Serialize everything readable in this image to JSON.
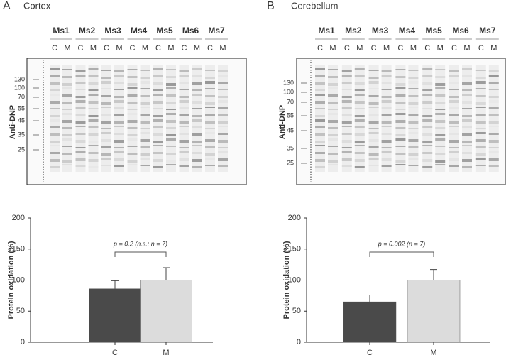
{
  "panels": [
    {
      "letter": "A",
      "label": "Cortex"
    },
    {
      "letter": "B",
      "label": "Cerebellum"
    }
  ],
  "blots": [
    {
      "mice": [
        "Ms1",
        "Ms2",
        "Ms3",
        "Ms4",
        "Ms5",
        "Ms6",
        "Ms7"
      ],
      "lanes": [
        "C",
        "M"
      ],
      "ylabel": "Anti-DNP",
      "markers": [
        130,
        100,
        70,
        55,
        45,
        35,
        25
      ]
    },
    {
      "mice": [
        "Ms1",
        "Ms2",
        "Ms3",
        "Ms4",
        "Ms5",
        "Ms6",
        "Ms7"
      ],
      "lanes": [
        "C",
        "M"
      ],
      "ylabel": "Anti-DNP",
      "markers": [
        130,
        100,
        70,
        55,
        45,
        35,
        25
      ]
    }
  ],
  "chart_data": [
    {
      "type": "bar",
      "ylabel": "Protein oxidation (%)",
      "categories": [
        "C",
        "M"
      ],
      "values": [
        86,
        100
      ],
      "errors": [
        13,
        20
      ],
      "colors": [
        "#4a4a4a",
        "#dcdcdc"
      ],
      "ylim": [
        0,
        200
      ],
      "yticks": [
        0,
        50,
        100,
        150,
        200
      ],
      "annotation": "p = 0.2 (n.s.; n = 7)"
    },
    {
      "type": "bar",
      "ylabel": "Protein oxidation (%)",
      "categories": [
        "C",
        "M"
      ],
      "values": [
        65,
        100
      ],
      "errors": [
        11,
        17
      ],
      "colors": [
        "#4a4a4a",
        "#dcdcdc"
      ],
      "ylim": [
        0,
        200
      ],
      "yticks": [
        0,
        50,
        100,
        150,
        200
      ],
      "annotation": "p = 0.002 (n = 7)"
    }
  ]
}
